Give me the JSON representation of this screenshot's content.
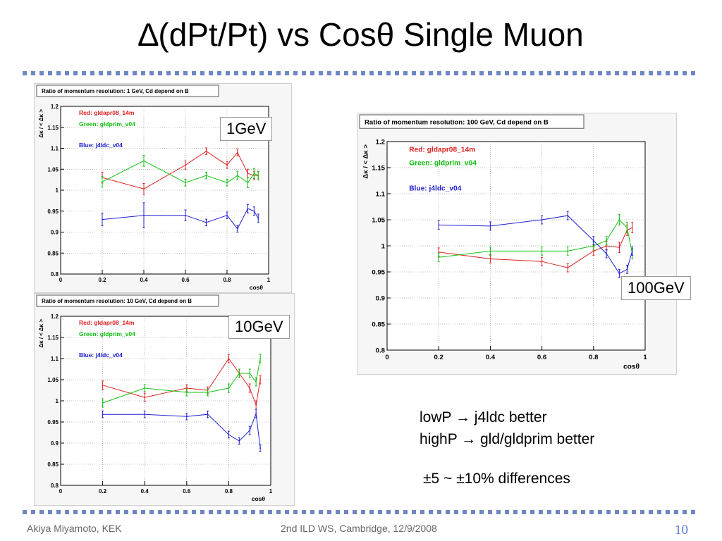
{
  "slide": {
    "title": "∆(dPt/Pt) vs Cosθ Single Muon",
    "notes": [
      "lowP → j4ldc better",
      "highP → gld/gldprim better"
    ],
    "diff": "±5 ~ ±10% differences",
    "footer_left": "Akiya Miyamoto, KEK",
    "footer_center": "2nd ILD WS, Cambridge, 12/9/2008",
    "page_number": "10",
    "tags": [
      "1GeV",
      "10GeV",
      "100GeV"
    ]
  },
  "chart_data": [
    {
      "type": "line",
      "title": "Ratio of momentum resolution: 1 GeV,  Cd depend on B",
      "ylabel": "Δκ / < Δκ >",
      "xlabel": "cosθ",
      "xlim": [
        0,
        1
      ],
      "ylim": [
        0.8,
        1.2
      ],
      "xticks": [
        "0",
        "0.2",
        "0.4",
        "0.6",
        "0.8",
        "1"
      ],
      "yticks": [
        "0.8",
        "0.85",
        "0.9",
        "0.95",
        "1",
        "1.05",
        "1.1",
        "1.15",
        "1.2"
      ],
      "legend": [
        "Red: gldapr08_14m",
        "Green: gldprim_v04",
        "Blue: j4ldc_v04"
      ],
      "series": [
        {
          "name": "Red: gldapr08_14m",
          "color": "#e02020",
          "x": [
            0.2,
            0.4,
            0.6,
            0.7,
            0.8,
            0.85,
            0.9,
            0.93,
            0.95
          ],
          "y": [
            1.03,
            1.003,
            1.06,
            1.093,
            1.06,
            1.09,
            1.04,
            1.035,
            1.035
          ],
          "err": [
            0.013,
            0.013,
            0.01,
            0.008,
            0.008,
            0.008,
            0.01,
            0.01,
            0.01
          ]
        },
        {
          "name": "Green: gldprim_v04",
          "color": "#10c010",
          "x": [
            0.2,
            0.4,
            0.6,
            0.7,
            0.8,
            0.85,
            0.9,
            0.93,
            0.95
          ],
          "y": [
            1.02,
            1.07,
            1.018,
            1.035,
            1.018,
            1.035,
            1.018,
            1.04,
            1.035
          ],
          "err": [
            0.013,
            0.013,
            0.008,
            0.008,
            0.008,
            0.01,
            0.012,
            0.012,
            0.01
          ]
        },
        {
          "name": "Blue: j4ldc_v04",
          "color": "#2020d0",
          "x": [
            0.2,
            0.4,
            0.6,
            0.7,
            0.8,
            0.85,
            0.9,
            0.93,
            0.95
          ],
          "y": [
            0.93,
            0.94,
            0.94,
            0.923,
            0.94,
            0.908,
            0.956,
            0.95,
            0.933
          ],
          "err": [
            0.015,
            0.03,
            0.013,
            0.008,
            0.008,
            0.008,
            0.01,
            0.01,
            0.01
          ]
        }
      ]
    },
    {
      "type": "line",
      "title": "Ratio of momentum resolution: 10 GeV,  Cd depend on B",
      "ylabel": "Δκ / < Δκ >",
      "xlabel": "cosθ",
      "xlim": [
        0,
        1
      ],
      "ylim": [
        0.8,
        1.2
      ],
      "xticks": [
        "0",
        "0.2",
        "0.4",
        "0.6",
        "0.8",
        "1"
      ],
      "yticks": [
        "0.8",
        "0.85",
        "0.9",
        "0.95",
        "1",
        "1.05",
        "1.1",
        "1.15",
        "1.2"
      ],
      "legend": [
        "Red: gldapr08_14m",
        "Green: gldprim_v04",
        "Blue: j4ldc_v04"
      ],
      "series": [
        {
          "name": "Red: gldapr08_14m",
          "color": "#e02020",
          "x": [
            0.2,
            0.4,
            0.6,
            0.7,
            0.8,
            0.85,
            0.9,
            0.93,
            0.95
          ],
          "y": [
            1.037,
            1.008,
            1.03,
            1.025,
            1.1,
            1.065,
            1.03,
            0.99,
            1.05
          ],
          "err": [
            0.01,
            0.01,
            0.008,
            0.008,
            0.01,
            0.01,
            0.01,
            0.01,
            0.01
          ]
        },
        {
          "name": "Green: gldprim_v04",
          "color": "#10c010",
          "x": [
            0.2,
            0.4,
            0.6,
            0.7,
            0.8,
            0.85,
            0.9,
            0.93,
            0.95
          ],
          "y": [
            0.995,
            1.03,
            1.02,
            1.02,
            1.03,
            1.065,
            1.065,
            1.045,
            1.1
          ],
          "err": [
            0.01,
            0.008,
            0.008,
            0.008,
            0.01,
            0.01,
            0.01,
            0.01,
            0.01
          ]
        },
        {
          "name": "Blue: j4ldc_v04",
          "color": "#2020d0",
          "x": [
            0.2,
            0.4,
            0.6,
            0.7,
            0.8,
            0.85,
            0.9,
            0.93,
            0.95
          ],
          "y": [
            0.968,
            0.968,
            0.963,
            0.968,
            0.92,
            0.905,
            0.93,
            0.97,
            0.888
          ],
          "err": [
            0.008,
            0.008,
            0.008,
            0.008,
            0.008,
            0.008,
            0.01,
            0.01,
            0.008
          ]
        }
      ]
    },
    {
      "type": "line",
      "title": "Ratio of momentum resolution: 100 GeV,  Cd depend on B",
      "ylabel": "Δκ / < Δκ >",
      "xlabel": "cosθ",
      "xlim": [
        0,
        1
      ],
      "ylim": [
        0.8,
        1.2
      ],
      "xticks": [
        "0",
        "0.2",
        "0.4",
        "0.6",
        "0.8",
        "1"
      ],
      "yticks": [
        "0.8",
        "0.85",
        "0.9",
        "0.95",
        "1",
        "1.05",
        "1.1",
        "1.15",
        "1.2"
      ],
      "legend": [
        "Red: gldapr08_14m",
        "Green: gldprim_v04",
        "Blue: j4ldc_v04"
      ],
      "series": [
        {
          "name": "Red: gldapr08_14m",
          "color": "#e02020",
          "x": [
            0.2,
            0.4,
            0.6,
            0.7,
            0.8,
            0.85,
            0.9,
            0.93,
            0.95
          ],
          "y": [
            0.988,
            0.975,
            0.97,
            0.958,
            0.99,
            1.0,
            0.997,
            1.03,
            1.035
          ],
          "err": [
            0.008,
            0.008,
            0.008,
            0.008,
            0.008,
            0.008,
            0.01,
            0.01,
            0.01
          ]
        },
        {
          "name": "Green: gldprim_v04",
          "color": "#10c010",
          "x": [
            0.2,
            0.4,
            0.6,
            0.7,
            0.8,
            0.85,
            0.9,
            0.93,
            0.95
          ],
          "y": [
            0.978,
            0.99,
            0.99,
            0.99,
            1.0,
            1.01,
            1.05,
            1.035,
            0.985
          ],
          "err": [
            0.008,
            0.008,
            0.008,
            0.008,
            0.008,
            0.008,
            0.01,
            0.01,
            0.01
          ]
        },
        {
          "name": "Blue: j4ldc_v04",
          "color": "#2020d0",
          "x": [
            0.2,
            0.4,
            0.6,
            0.7,
            0.8,
            0.85,
            0.9,
            0.93,
            0.95
          ],
          "y": [
            1.04,
            1.038,
            1.05,
            1.058,
            1.01,
            0.985,
            0.947,
            0.955,
            0.99
          ],
          "err": [
            0.008,
            0.008,
            0.008,
            0.008,
            0.008,
            0.008,
            0.008,
            0.008,
            0.008
          ]
        }
      ]
    }
  ]
}
